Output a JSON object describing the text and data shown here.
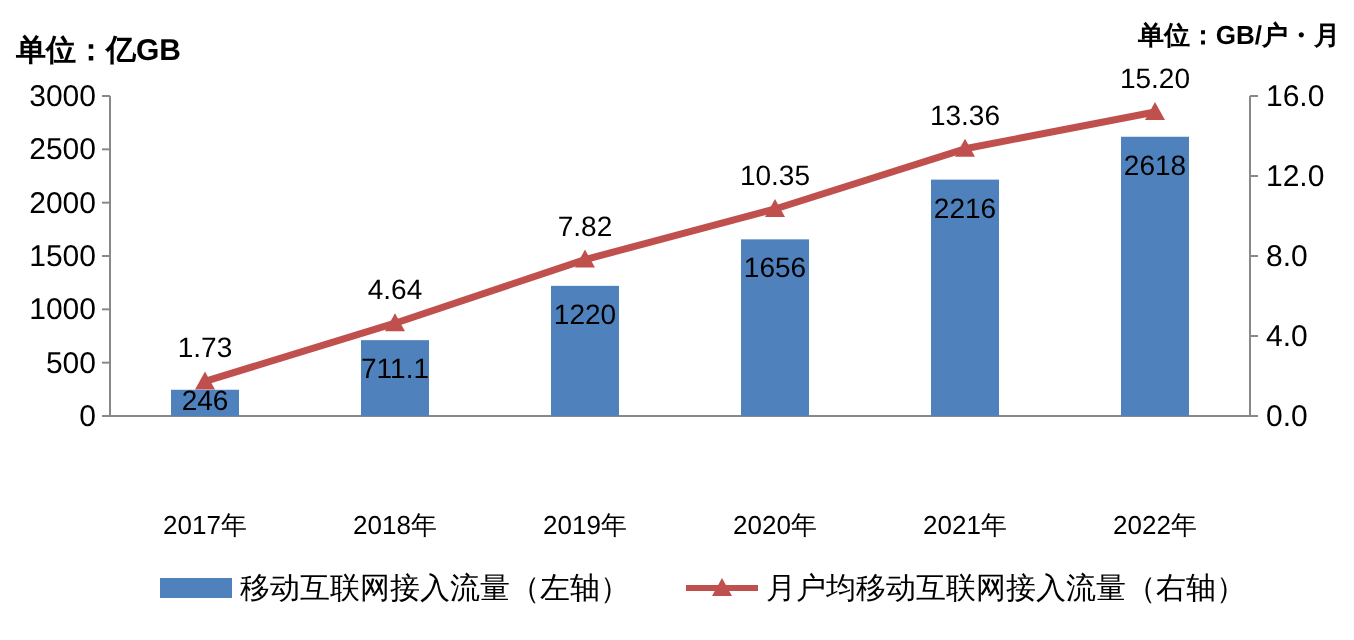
{
  "chart_data": {
    "type": "bar",
    "ylabel": "单位：亿GB",
    "y2label": "单位：GB/户・月",
    "categories": [
      "2017年",
      "2018年",
      "2019年",
      "2020年",
      "2021年",
      "2022年"
    ],
    "series": [
      {
        "name": "移动互联网接入流量（左轴）",
        "color": "#4f81bd",
        "values": [
          246,
          711.1,
          1220,
          1656,
          2216,
          2618
        ],
        "value_labels": [
          "246",
          "711.1",
          "1220",
          "1656",
          "2216",
          "2618"
        ]
      },
      {
        "name": "月户均移动互联网接入流量（右轴）",
        "type": "line",
        "axis": "y2",
        "color": "#c0504d",
        "marker": "triangle",
        "line_style": "solid",
        "values": [
          1.73,
          4.64,
          7.82,
          10.35,
          13.36,
          15.2
        ],
        "value_labels": [
          "1.73",
          "4.64",
          "7.82",
          "10.35",
          "13.36",
          "15.20"
        ]
      }
    ],
    "ylim": [
      0,
      3000
    ],
    "yticks": [
      0,
      500,
      1000,
      1500,
      2000,
      2500,
      3000
    ],
    "y2lim": [
      0,
      16
    ],
    "y2ticks": [
      {
        "value": 0,
        "label": "0.0"
      },
      {
        "value": 4,
        "label": "4.0"
      },
      {
        "value": 8,
        "label": "8.0"
      },
      {
        "value": 12,
        "label": "12.0"
      },
      {
        "value": 16,
        "label": "16.0"
      }
    ],
    "grid": false,
    "legend": "bottom"
  }
}
